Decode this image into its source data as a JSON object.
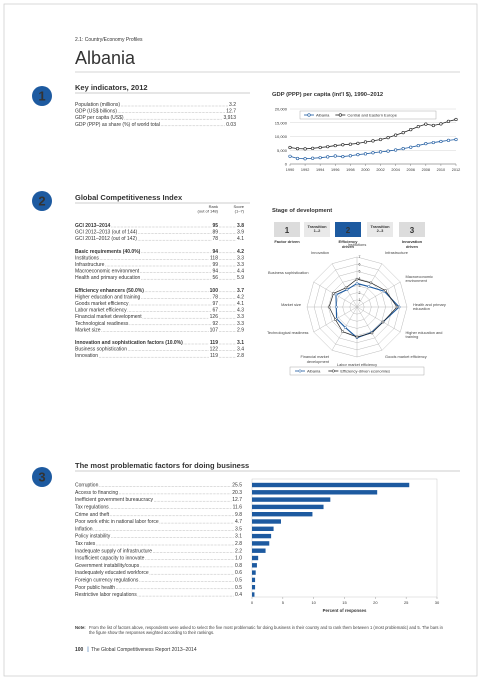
{
  "header": {
    "section": "2.1: Country/Economy Profiles",
    "title": "Albania"
  },
  "sections": [
    {
      "number": "1",
      "title": "Key indicators, 2012",
      "rows": [
        {
          "label": "Population (millions)",
          "value": "3.2"
        },
        {
          "label": "GDP (US$ billions)",
          "value": "12.7"
        },
        {
          "label": "GDP per capita (US$)",
          "value": "3,913"
        },
        {
          "label": "GDP (PPP) as share (%) of world total",
          "value": "0.03"
        }
      ]
    },
    {
      "number": "2",
      "title": "Global Competitiveness Index",
      "columns": [
        {
          "lines": [
            "Rank",
            "(out of 148)"
          ]
        },
        {
          "lines": [
            "Score",
            "(1–7)"
          ]
        }
      ],
      "groups": [
        {
          "rows": [
            {
              "label": "GCI 2013–2014",
              "rank": "95",
              "score": "3.8"
            },
            {
              "label": "GCI 2012–2013 (out of 144)",
              "rank": "89",
              "score": "3.9"
            },
            {
              "label": "GCI 2011–2012 (out of 142)",
              "rank": "78",
              "score": "4.1"
            }
          ]
        },
        {
          "rows": [
            {
              "label": "Basic requirements (40.0%)",
              "rank": "94",
              "score": "4.2"
            },
            {
              "label": "Institutions",
              "rank": "118",
              "score": "3.3"
            },
            {
              "label": "Infrastructure",
              "rank": "99",
              "score": "3.3"
            },
            {
              "label": "Macroeconomic environment",
              "rank": "94",
              "score": "4.4"
            },
            {
              "label": "Health and primary education",
              "rank": "56",
              "score": "5.9"
            }
          ]
        },
        {
          "rows": [
            {
              "label": "Efficiency enhancers (50.0%)",
              "rank": "100",
              "score": "3.7"
            },
            {
              "label": "Higher education and training",
              "rank": "78",
              "score": "4.2"
            },
            {
              "label": "Goods market efficiency",
              "rank": "97",
              "score": "4.1"
            },
            {
              "label": "Labor market efficiency",
              "rank": "67",
              "score": "4.3"
            },
            {
              "label": "Financial market development",
              "rank": "126",
              "score": "3.3"
            },
            {
              "label": "Technological readiness",
              "rank": "92",
              "score": "3.3"
            },
            {
              "label": "Market size",
              "rank": "107",
              "score": "2.9"
            }
          ]
        },
        {
          "rows": [
            {
              "label": "Innovation and sophistication factors (10.0%)",
              "rank": "119",
              "score": "3.1"
            },
            {
              "label": "Business sophistication",
              "rank": "122",
              "score": "3.4"
            },
            {
              "label": "Innovation",
              "rank": "119",
              "score": "2.8"
            }
          ]
        }
      ],
      "stage": {
        "title": "Stage of development",
        "current": 2,
        "stages": [
          {
            "number": "1",
            "label": "Factor driven"
          },
          {
            "label": "Transition 1–2"
          },
          {
            "number": "2",
            "label": "Efficiency driven"
          },
          {
            "label": "Transition 2–3"
          },
          {
            "number": "3",
            "label": "Innovation driven"
          }
        ]
      }
    },
    {
      "number": "3",
      "title": "The most problematic factors for doing business"
    }
  ],
  "note": {
    "label": "Note:",
    "text": "From the list of factors above, respondents were asked to select the five most problematic for doing business in their country and to rank them between 1 (most problematic) and 5. The bars in the figure show the responses weighted according to their rankings."
  },
  "footer": {
    "page": "100",
    "title": "The Global Competitiveness Report 2013–2014"
  },
  "chart_data": [
    {
      "type": "line",
      "title": "GDP (PPP) per capita (int'l $), 1990–2012",
      "x": [
        1990,
        1991,
        1992,
        1993,
        1994,
        1995,
        1996,
        1997,
        1998,
        1999,
        2000,
        2001,
        2002,
        2003,
        2004,
        2005,
        2006,
        2007,
        2008,
        2009,
        2010,
        2011,
        2012
      ],
      "series": [
        {
          "name": "Albania",
          "color": "#1d5aa0",
          "values": [
            2800,
            2000,
            1900,
            2100,
            2300,
            2600,
            2900,
            2700,
            3000,
            3400,
            3700,
            4100,
            4400,
            4700,
            5100,
            5600,
            6100,
            6700,
            7400,
            7800,
            8200,
            8600,
            8900
          ]
        },
        {
          "name": "Central and Eastern Europe",
          "color": "#222222",
          "values": [
            6000,
            5600,
            5500,
            5700,
            6000,
            6300,
            6700,
            7000,
            7200,
            7500,
            8000,
            8400,
            8900,
            9600,
            10500,
            11400,
            12500,
            13600,
            14500,
            14000,
            14600,
            15500,
            16200
          ]
        }
      ],
      "xlim": [
        1990,
        2012
      ],
      "xticks": [
        1990,
        1992,
        1994,
        1996,
        1998,
        2000,
        2002,
        2004,
        2006,
        2008,
        2010,
        2012
      ],
      "ylim": [
        0,
        20000
      ],
      "yticks": [
        0,
        {
          "value": 5000,
          "label": "5,000"
        },
        {
          "value": 10000,
          "label": "10,000"
        },
        {
          "value": 15000,
          "label": "15,000"
        },
        {
          "value": 20000,
          "label": "20,000"
        }
      ],
      "grid": true,
      "legend": "top"
    },
    {
      "type": "radar",
      "categories": [
        "Institutions",
        "Infrastructure",
        "Macroeconomic environment",
        "Health and primary education",
        "Higher education and training",
        "Goods market efficiency",
        "Labor market efficiency",
        "Financial market development",
        "Technological readiness",
        "Market size",
        "Business sophistication",
        "Innovation"
      ],
      "series": [
        {
          "name": "Albania",
          "color": "#1d5aa0",
          "values": [
            3.3,
            3.3,
            4.4,
            5.9,
            4.2,
            4.1,
            4.3,
            3.3,
            3.3,
            2.9,
            3.4,
            2.8
          ]
        },
        {
          "name": "Efficiency-driven economies",
          "color": "#222222",
          "values": [
            3.9,
            3.9,
            4.6,
            5.6,
            4.2,
            4.2,
            4.2,
            4.0,
            3.5,
            3.9,
            3.8,
            3.1
          ]
        }
      ],
      "rlim": [
        0,
        7
      ],
      "rticks": [
        1,
        2,
        3,
        4,
        5,
        6,
        7
      ],
      "legend": "bottom"
    },
    {
      "type": "bar",
      "orientation": "horizontal",
      "color": "#1d5aa0",
      "categories": [
        "Corruption",
        "Access to financing",
        "Inefficient government bureaucracy",
        "Tax regulations",
        "Crime and theft",
        "Poor work ethic in national labor force",
        "Inflation",
        "Policy instability",
        "Tax rates",
        "Inadequate supply of infrastructure",
        "Insufficient capacity to innovate",
        "Government instability/coups",
        "Inadequately educated workforce",
        "Foreign currency regulations",
        "Poor public health",
        "Restrictive labor regulations"
      ],
      "values": [
        25.5,
        20.3,
        12.7,
        11.6,
        9.8,
        4.7,
        3.5,
        3.1,
        2.8,
        2.2,
        1.0,
        0.8,
        0.6,
        0.5,
        0.5,
        0.4
      ],
      "value_labels": [
        "25.5",
        "20.3",
        "12.7",
        "11.6",
        "9.8",
        "4.7",
        "3.5",
        "3.1",
        "2.8",
        "2.2",
        "1.0",
        "0.8",
        "0.6",
        "0.5",
        "0.5",
        "0.4"
      ],
      "xlabel": "Percent of responses",
      "xlim": [
        0,
        30
      ],
      "xticks": [
        0,
        5,
        10,
        15,
        20,
        25,
        30
      ]
    }
  ]
}
